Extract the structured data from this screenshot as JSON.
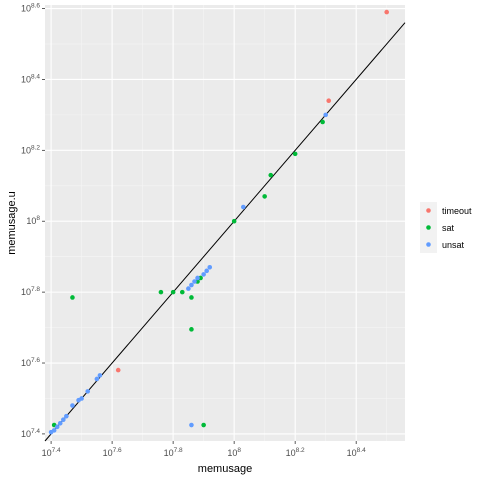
{
  "chart_data": {
    "type": "scatter",
    "title": "",
    "xlabel": "memusage",
    "ylabel": "memusage.u",
    "x_scale": "log10",
    "y_scale": "log10",
    "xlim_exp": [
      7.38,
      8.56
    ],
    "ylim_exp": [
      7.38,
      8.61
    ],
    "x_ticks": [
      {
        "base": "10",
        "exp": "7.4",
        "value": 7.4
      },
      {
        "base": "10",
        "exp": "7.6",
        "value": 7.6
      },
      {
        "base": "10",
        "exp": "7.8",
        "value": 7.8
      },
      {
        "base": "10",
        "exp": "8",
        "value": 8.0
      },
      {
        "base": "10",
        "exp": "8.2",
        "value": 8.2
      },
      {
        "base": "10",
        "exp": "8.4",
        "value": 8.4
      }
    ],
    "y_ticks": [
      {
        "base": "10",
        "exp": "7.4",
        "value": 7.4
      },
      {
        "base": "10",
        "exp": "7.6",
        "value": 7.6
      },
      {
        "base": "10",
        "exp": "7.8",
        "value": 7.8
      },
      {
        "base": "10",
        "exp": "8",
        "value": 8.0
      },
      {
        "base": "10",
        "exp": "8.2",
        "value": 8.2
      },
      {
        "base": "10",
        "exp": "8.4",
        "value": 8.4
      },
      {
        "base": "10",
        "exp": "8.6",
        "value": 8.6
      }
    ],
    "grid": true,
    "reference_line": "y = x",
    "legend": {
      "placement": "right"
    },
    "series": [
      {
        "name": "timeout",
        "color": "#F8766D",
        "points": [
          [
            8.5,
            8.59
          ],
          [
            8.31,
            8.34
          ],
          [
            7.62,
            7.58
          ]
        ]
      },
      {
        "name": "sat",
        "color": "#00BA38",
        "points": [
          [
            7.41,
            7.425
          ],
          [
            7.47,
            7.785
          ],
          [
            7.76,
            7.8
          ],
          [
            7.8,
            7.8
          ],
          [
            7.83,
            7.8
          ],
          [
            7.86,
            7.785
          ],
          [
            7.88,
            7.83
          ],
          [
            7.89,
            7.84
          ],
          [
            7.86,
            7.695
          ],
          [
            7.9,
            7.425
          ],
          [
            8.0,
            8.0
          ],
          [
            8.1,
            8.07
          ],
          [
            8.12,
            8.13
          ],
          [
            8.2,
            8.19
          ],
          [
            8.29,
            8.28
          ]
        ]
      },
      {
        "name": "unsat",
        "color": "#619CFF",
        "points": [
          [
            7.4,
            7.405
          ],
          [
            7.41,
            7.41
          ],
          [
            7.42,
            7.42
          ],
          [
            7.43,
            7.43
          ],
          [
            7.44,
            7.44
          ],
          [
            7.45,
            7.45
          ],
          [
            7.47,
            7.48
          ],
          [
            7.49,
            7.495
          ],
          [
            7.5,
            7.5
          ],
          [
            7.52,
            7.52
          ],
          [
            7.55,
            7.555
          ],
          [
            7.56,
            7.565
          ],
          [
            7.85,
            7.81
          ],
          [
            7.86,
            7.82
          ],
          [
            7.87,
            7.83
          ],
          [
            7.88,
            7.84
          ],
          [
            7.9,
            7.85
          ],
          [
            7.91,
            7.86
          ],
          [
            7.92,
            7.87
          ],
          [
            7.86,
            7.425
          ],
          [
            8.03,
            8.04
          ],
          [
            8.3,
            8.3
          ]
        ]
      }
    ]
  }
}
